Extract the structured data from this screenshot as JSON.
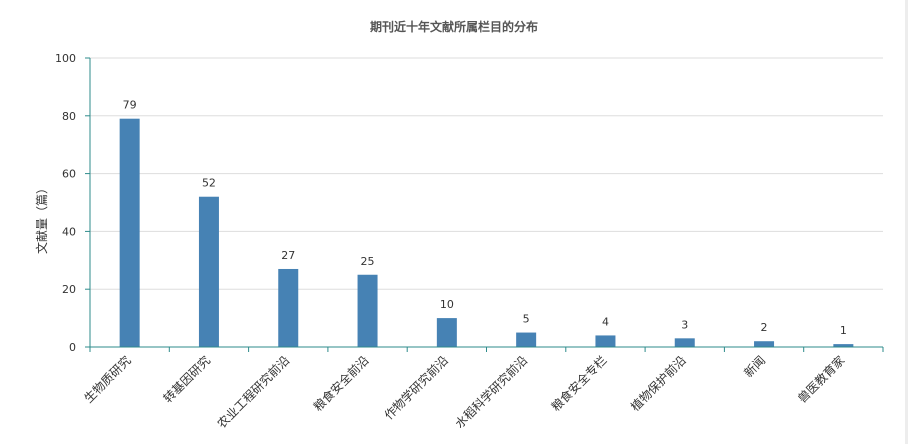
{
  "chart_data": {
    "type": "bar",
    "title": "期刊近十年文献所属栏目的分布",
    "xlabel": "",
    "ylabel": "文献量（篇）",
    "categories": [
      "生物质研究",
      "转基因研究",
      "农业工程研究前沿",
      "粮食安全前沿",
      "作物学研究前沿",
      "水稻科学研究前沿",
      "粮食安全专栏",
      "植物保护前沿",
      "新闻",
      "兽医教育家"
    ],
    "values": [
      79,
      52,
      27,
      25,
      10,
      5,
      4,
      3,
      2,
      1
    ],
    "ylim": [
      0,
      100
    ],
    "yticks": [
      0,
      20,
      40,
      60,
      80,
      100
    ],
    "grid": true,
    "legend": "none"
  },
  "colors": {
    "bar": "#4682b4",
    "axis": "#2e8b8b",
    "grid": "#dddddd",
    "text": "#333333",
    "title": "#555555"
  }
}
